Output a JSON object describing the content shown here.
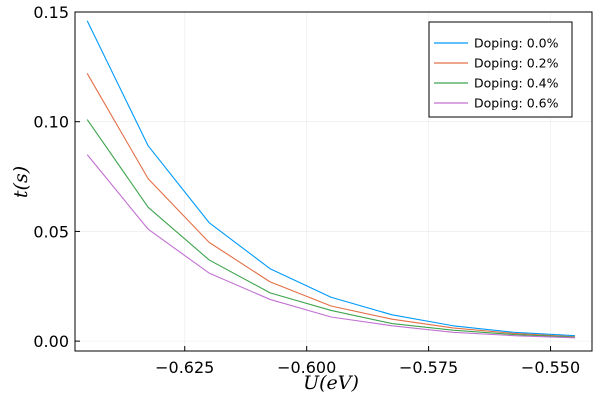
{
  "chart_data": {
    "type": "line",
    "title": "",
    "xlabel": "U(eV)",
    "ylabel": "t(s)",
    "xlim": [
      -0.6475,
      -0.5415
    ],
    "ylim": [
      -0.0045,
      0.15
    ],
    "x_ticks": [
      -0.625,
      -0.6,
      -0.575,
      -0.55
    ],
    "x_tick_labels": [
      "−0.625",
      "−0.600",
      "−0.575",
      "−0.550"
    ],
    "y_ticks": [
      0.0,
      0.05,
      0.1,
      0.15
    ],
    "y_tick_labels": [
      "0.00",
      "0.05",
      "0.10",
      "0.15"
    ],
    "grid": true,
    "legend_position": "top-right",
    "x": [
      -0.645,
      -0.6325,
      -0.62,
      -0.6075,
      -0.595,
      -0.5825,
      -0.57,
      -0.5575,
      -0.545
    ],
    "series": [
      {
        "name": "Doping: 0.0%",
        "color": "#009af9",
        "values": [
          0.146,
          0.089,
          0.054,
          0.033,
          0.02,
          0.012,
          0.007,
          0.004,
          0.0025
        ]
      },
      {
        "name": "Doping: 0.2%",
        "color": "#e26f46",
        "values": [
          0.122,
          0.074,
          0.045,
          0.027,
          0.016,
          0.01,
          0.006,
          0.0035,
          0.002
        ]
      },
      {
        "name": "Doping: 0.4%",
        "color": "#3da44d",
        "values": [
          0.101,
          0.061,
          0.037,
          0.022,
          0.014,
          0.008,
          0.005,
          0.003,
          0.0018
        ]
      },
      {
        "name": "Doping: 0.6%",
        "color": "#c271d2",
        "values": [
          0.085,
          0.051,
          0.031,
          0.019,
          0.011,
          0.007,
          0.004,
          0.0025,
          0.0015
        ]
      }
    ]
  }
}
